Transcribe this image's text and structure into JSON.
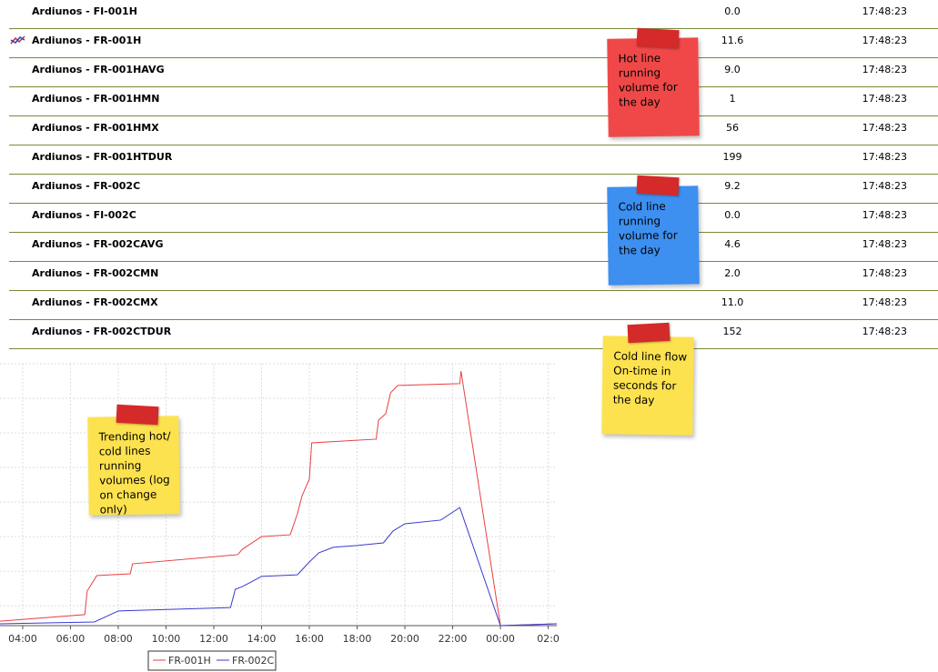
{
  "table": {
    "rows": [
      [
        "Ardiunos - FI-001H",
        "0.0",
        "17:48:23"
      ],
      [
        "Ardiunos - FR-001H",
        "11.6",
        "17:48:23"
      ],
      [
        "Ardiunos - FR-001HAVG",
        "9.0",
        "17:48:23"
      ],
      [
        "Ardiunos - FR-001HMN",
        "1",
        "17:48:23"
      ],
      [
        "Ardiunos - FR-001HMX",
        "56",
        "17:48:23"
      ],
      [
        "Ardiunos - FR-001HTDUR",
        "199",
        "17:48:23"
      ],
      [
        "Ardiunos - FR-002C",
        "9.2",
        "17:48:23"
      ],
      [
        "Ardiunos - FI-002C",
        "0.0",
        "17:48:23"
      ],
      [
        "Ardiunos - FR-002CAVG",
        "4.6",
        "17:48:23"
      ],
      [
        "Ardiunos - FR-002CMN",
        "2.0",
        "17:48:23"
      ],
      [
        "Ardiunos - FR-002CMX",
        "11.0",
        "17:48:23"
      ],
      [
        "Ardiunos - FR-002CTDUR",
        "152",
        "17:48:23"
      ]
    ]
  },
  "notes": [
    {
      "text": "Hot line running volume for the day"
    },
    {
      "text": "Cold line running volume for the day"
    },
    {
      "text": "Cold line flow On-time in seconds for the day"
    },
    {
      "text": "Trending hot/ cold lines running volumes (log on change only)"
    }
  ],
  "chart_data": {
    "type": "line",
    "grid": true,
    "xlim": [
      3.05,
      26.36
    ],
    "xticks": [
      {
        "value": 4,
        "label": "04:00"
      },
      {
        "value": 6,
        "label": "06:00"
      },
      {
        "value": 8,
        "label": "08:00"
      },
      {
        "value": 10,
        "label": "10:00"
      },
      {
        "value": 12,
        "label": "12:00"
      },
      {
        "value": 14,
        "label": "14:00"
      },
      {
        "value": 16,
        "label": "16:00"
      },
      {
        "value": 18,
        "label": "18:00"
      },
      {
        "value": 20,
        "label": "20:00"
      },
      {
        "value": 22,
        "label": "22:00"
      },
      {
        "value": 24,
        "label": "00:00"
      },
      {
        "value": 26,
        "label": "02:0"
      }
    ],
    "ylim": [
      0,
      100
    ],
    "yticks": [
      7.6,
      20.8,
      34,
      47.2,
      60.4,
      73.6,
      86.8,
      100
    ],
    "series": [
      {
        "name": "FR-001H",
        "color": "#e84040",
        "x": [
          3.05,
          6.6,
          6.7,
          7.1,
          8.5,
          8.6,
          13.0,
          13.2,
          14.0,
          15.2,
          15.5,
          15.7,
          16.0,
          16.1,
          18.8,
          18.9,
          19.2,
          19.4,
          19.7,
          22.3,
          22.35,
          24.0,
          26.36
        ],
        "values": [
          1.7,
          4.2,
          13.2,
          19.1,
          19.8,
          23.6,
          27.1,
          29.2,
          34.0,
          34.7,
          42.7,
          49.7,
          55.9,
          69.8,
          71.2,
          78.5,
          80.9,
          88.9,
          91.7,
          92.4,
          97.2,
          0,
          0.7
        ]
      },
      {
        "name": "FR-002C",
        "color": "#3a3ad0",
        "x": [
          3.05,
          7.0,
          7.5,
          8.0,
          12.7,
          12.9,
          13.2,
          14.0,
          15.5,
          16.0,
          16.4,
          17.0,
          18.0,
          19.1,
          19.5,
          20.0,
          21.5,
          22.3,
          24.0,
          26.36
        ],
        "values": [
          0.7,
          1.4,
          3.5,
          5.6,
          6.9,
          13.9,
          14.9,
          18.8,
          19.4,
          24.3,
          27.8,
          29.9,
          30.6,
          31.6,
          36.1,
          38.9,
          40.3,
          45.1,
          0,
          0.7
        ]
      }
    ]
  }
}
